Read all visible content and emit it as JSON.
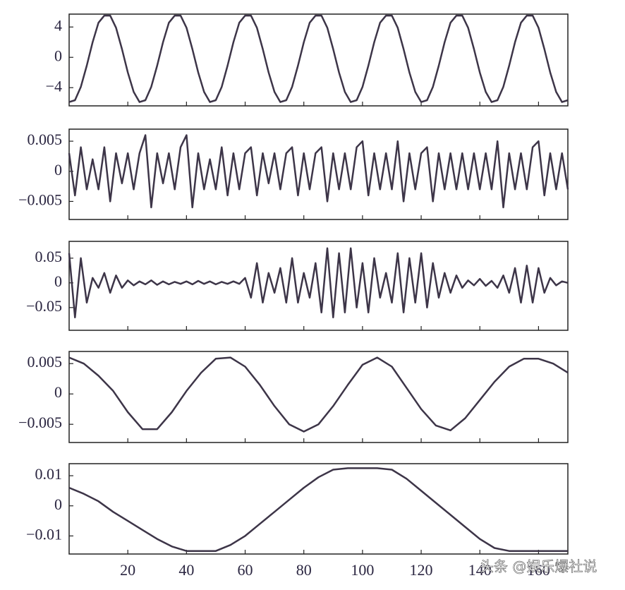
{
  "chart_data": [
    {
      "type": "line",
      "color": "#3d3548",
      "x": [
        0,
        2,
        4,
        6,
        8,
        10,
        12,
        14,
        16,
        18,
        20,
        22,
        24,
        26,
        28,
        30,
        32,
        34,
        36,
        38,
        40,
        42,
        44,
        46,
        48,
        50,
        52,
        54,
        56,
        58,
        60,
        62,
        64,
        66,
        68,
        70,
        72,
        74,
        76,
        78,
        80,
        82,
        84,
        86,
        88,
        90,
        92,
        94,
        96,
        98,
        100,
        102,
        104,
        106,
        108,
        110,
        112,
        114,
        116,
        118,
        120,
        122,
        124,
        126,
        128,
        130,
        132,
        134,
        136,
        138,
        140,
        142,
        144,
        146,
        148,
        150,
        152,
        154,
        156,
        158,
        160,
        162,
        164,
        166,
        168,
        170
      ],
      "values": [
        -5.9,
        -5.66,
        -3.9,
        -1.09,
        2,
        4.56,
        5.5,
        5.5,
        3.9,
        1.09,
        -2,
        -4.56,
        -5.9,
        -5.66,
        -3.9,
        -1.09,
        2,
        4.56,
        5.5,
        5.5,
        3.9,
        1.09,
        -2,
        -4.56,
        -5.9,
        -5.66,
        -3.9,
        -1.09,
        2,
        4.56,
        5.5,
        5.5,
        3.9,
        1.09,
        -2,
        -4.56,
        -5.9,
        -5.66,
        -3.9,
        -1.09,
        2,
        4.56,
        5.5,
        5.5,
        3.9,
        1.09,
        -2,
        -4.56,
        -5.9,
        -5.66,
        -3.9,
        -1.09,
        2,
        4.56,
        5.5,
        5.5,
        3.9,
        1.09,
        -2,
        -4.56,
        -5.9,
        -5.66,
        -3.9,
        -1.09,
        2,
        4.56,
        5.5,
        5.5,
        3.9,
        1.09,
        -2,
        -4.56,
        -5.9,
        -5.66,
        -3.9,
        -1.09,
        2,
        4.56,
        5.5,
        5.5,
        3.9,
        1.09,
        -2,
        -4.56,
        -5.9,
        -5.66
      ],
      "xlim": [
        0,
        170
      ],
      "xticks": [
        20,
        40,
        60,
        80,
        100,
        120,
        140,
        160
      ],
      "ylim": [
        -6.4,
        5.7
      ],
      "yticks": [
        4,
        0,
        {
          "value": -4,
          "label": "−4"
        }
      ]
    },
    {
      "type": "line",
      "color": "#3d3548",
      "x": [
        0,
        2,
        4,
        6,
        8,
        10,
        12,
        14,
        16,
        18,
        20,
        22,
        24,
        26,
        28,
        30,
        32,
        34,
        36,
        38,
        40,
        42,
        44,
        46,
        48,
        50,
        52,
        54,
        56,
        58,
        60,
        62,
        64,
        66,
        68,
        70,
        72,
        74,
        76,
        78,
        80,
        82,
        84,
        86,
        88,
        90,
        92,
        94,
        96,
        98,
        100,
        102,
        104,
        106,
        108,
        110,
        112,
        114,
        116,
        118,
        120,
        122,
        124,
        126,
        128,
        130,
        132,
        134,
        136,
        138,
        140,
        142,
        144,
        146,
        148,
        150,
        152,
        154,
        156,
        158,
        160,
        162,
        164,
        166,
        168,
        170
      ],
      "values": [
        0.003,
        -0.004,
        0.004,
        -0.003,
        0.002,
        -0.003,
        0.004,
        -0.005,
        0.003,
        -0.002,
        0.003,
        -0.003,
        0.003,
        0.006,
        -0.006,
        0.003,
        -0.002,
        0.003,
        -0.003,
        0.004,
        0.006,
        -0.006,
        0.003,
        -0.003,
        0.002,
        -0.003,
        0.004,
        -0.004,
        0.003,
        -0.003,
        0.003,
        0.004,
        -0.004,
        0.003,
        -0.002,
        0.003,
        -0.003,
        0.003,
        0.004,
        -0.004,
        0.003,
        -0.003,
        0.003,
        0.004,
        -0.005,
        0.003,
        -0.003,
        0.003,
        -0.003,
        0.004,
        0.005,
        -0.004,
        0.003,
        -0.003,
        0.003,
        -0.003,
        0.005,
        -0.005,
        0.003,
        -0.003,
        0.003,
        0.004,
        -0.005,
        0.003,
        -0.003,
        0.003,
        -0.003,
        0.003,
        -0.003,
        0.003,
        -0.003,
        0.003,
        -0.003,
        0.005,
        -0.006,
        0.003,
        -0.003,
        0.003,
        -0.003,
        0.004,
        0.005,
        -0.004,
        0.003,
        -0.003,
        0.003,
        -0.003
      ],
      "xlim": [
        0,
        170
      ],
      "xticks": [
        20,
        40,
        60,
        80,
        100,
        120,
        140,
        160
      ],
      "ylim": [
        -0.008,
        0.007
      ],
      "yticks": [
        0.005,
        0,
        {
          "value": -0.005,
          "label": "−0.005"
        }
      ]
    },
    {
      "type": "line",
      "color": "#3d3548",
      "x": [
        0,
        2,
        4,
        6,
        8,
        10,
        12,
        14,
        16,
        18,
        20,
        22,
        24,
        26,
        28,
        30,
        32,
        34,
        36,
        38,
        40,
        42,
        44,
        46,
        48,
        50,
        52,
        54,
        56,
        58,
        60,
        62,
        64,
        66,
        68,
        70,
        72,
        74,
        76,
        78,
        80,
        82,
        84,
        86,
        88,
        90,
        92,
        94,
        96,
        98,
        100,
        102,
        104,
        106,
        108,
        110,
        112,
        114,
        116,
        118,
        120,
        122,
        124,
        126,
        128,
        130,
        132,
        134,
        136,
        138,
        140,
        142,
        144,
        146,
        148,
        150,
        152,
        154,
        156,
        158,
        160,
        162,
        164,
        166,
        168,
        170
      ],
      "values": [
        0.06,
        -0.07,
        0.05,
        -0.04,
        0.01,
        -0.01,
        0.02,
        -0.02,
        0.015,
        -0.01,
        0.005,
        -0.005,
        0.003,
        -0.003,
        0.005,
        -0.004,
        0.003,
        -0.003,
        0.002,
        -0.002,
        0.003,
        -0.003,
        0.004,
        -0.002,
        0.003,
        -0.003,
        0.002,
        -0.002,
        0.003,
        -0.002,
        0.01,
        -0.03,
        0.04,
        -0.04,
        0.02,
        -0.02,
        0.03,
        -0.04,
        0.05,
        -0.04,
        0.02,
        -0.03,
        0.04,
        -0.06,
        0.07,
        -0.07,
        0.06,
        -0.06,
        0.07,
        -0.05,
        0.04,
        -0.06,
        0.05,
        -0.03,
        0.02,
        -0.04,
        0.06,
        -0.06,
        0.05,
        -0.04,
        0.06,
        -0.05,
        0.04,
        -0.03,
        0.02,
        -0.02,
        0.015,
        -0.01,
        0.005,
        -0.005,
        0.008,
        -0.006,
        0.004,
        -0.01,
        0.015,
        -0.02,
        0.03,
        -0.04,
        0.035,
        -0.04,
        0.03,
        -0.02,
        0.01,
        -0.005,
        0.003,
        0
      ],
      "xlim": [
        0,
        170
      ],
      "xticks": [
        20,
        40,
        60,
        80,
        100,
        120,
        140,
        160
      ],
      "ylim": [
        -0.096,
        0.084
      ],
      "yticks": [
        0.05,
        0,
        {
          "value": -0.05,
          "label": "−0.05"
        }
      ]
    },
    {
      "type": "line",
      "color": "#3d3548",
      "x": [
        0,
        5,
        10,
        15,
        20,
        25,
        30,
        35,
        40,
        45,
        50,
        55,
        60,
        65,
        70,
        75,
        80,
        85,
        90,
        95,
        100,
        105,
        110,
        115,
        120,
        125,
        130,
        135,
        140,
        145,
        150,
        155,
        160,
        165,
        170
      ],
      "values": [
        0.006,
        0.005,
        0.003,
        0.0005,
        -0.003,
        -0.0058,
        -0.0058,
        -0.003,
        0.0005,
        0.0035,
        0.0058,
        0.006,
        0.0045,
        0.0015,
        -0.002,
        -0.005,
        -0.0062,
        -0.005,
        -0.002,
        0.0015,
        0.0048,
        0.006,
        0.0045,
        0.001,
        -0.0025,
        -0.0052,
        -0.006,
        -0.004,
        -0.001,
        0.002,
        0.0045,
        0.0058,
        0.0058,
        0.005,
        0.0035
      ],
      "xlim": [
        0,
        170
      ],
      "xticks": [
        20,
        40,
        60,
        80,
        100,
        120,
        140,
        160
      ],
      "ylim": [
        -0.008,
        0.007
      ],
      "yticks": [
        0.005,
        0,
        {
          "value": -0.005,
          "label": "−0.005"
        }
      ]
    },
    {
      "type": "line",
      "color": "#3d3548",
      "x": [
        0,
        5,
        10,
        15,
        20,
        25,
        30,
        35,
        40,
        45,
        50,
        55,
        60,
        65,
        70,
        75,
        80,
        85,
        90,
        95,
        100,
        105,
        110,
        115,
        120,
        125,
        130,
        135,
        140,
        145,
        150,
        155,
        160,
        165,
        170
      ],
      "values": [
        0.006,
        0.004,
        0.0015,
        -0.002,
        -0.005,
        -0.008,
        -0.011,
        -0.0135,
        -0.015,
        -0.015,
        -0.015,
        -0.013,
        -0.01,
        -0.006,
        -0.002,
        0.002,
        0.006,
        0.0095,
        0.012,
        0.0125,
        0.0125,
        0.0125,
        0.012,
        0.009,
        0.005,
        0.001,
        -0.003,
        -0.007,
        -0.011,
        -0.014,
        -0.015,
        -0.015,
        -0.015,
        -0.015,
        -0.015
      ],
      "xlim": [
        0,
        170
      ],
      "xticks": [
        20,
        40,
        60,
        80,
        100,
        120,
        140,
        160
      ],
      "ylim": [
        -0.016,
        0.014
      ],
      "yticks": [
        0.01,
        0,
        {
          "value": -0.01,
          "label": "−0.01"
        }
      ]
    }
  ],
  "watermark": "头条 @娱乐爆社说"
}
